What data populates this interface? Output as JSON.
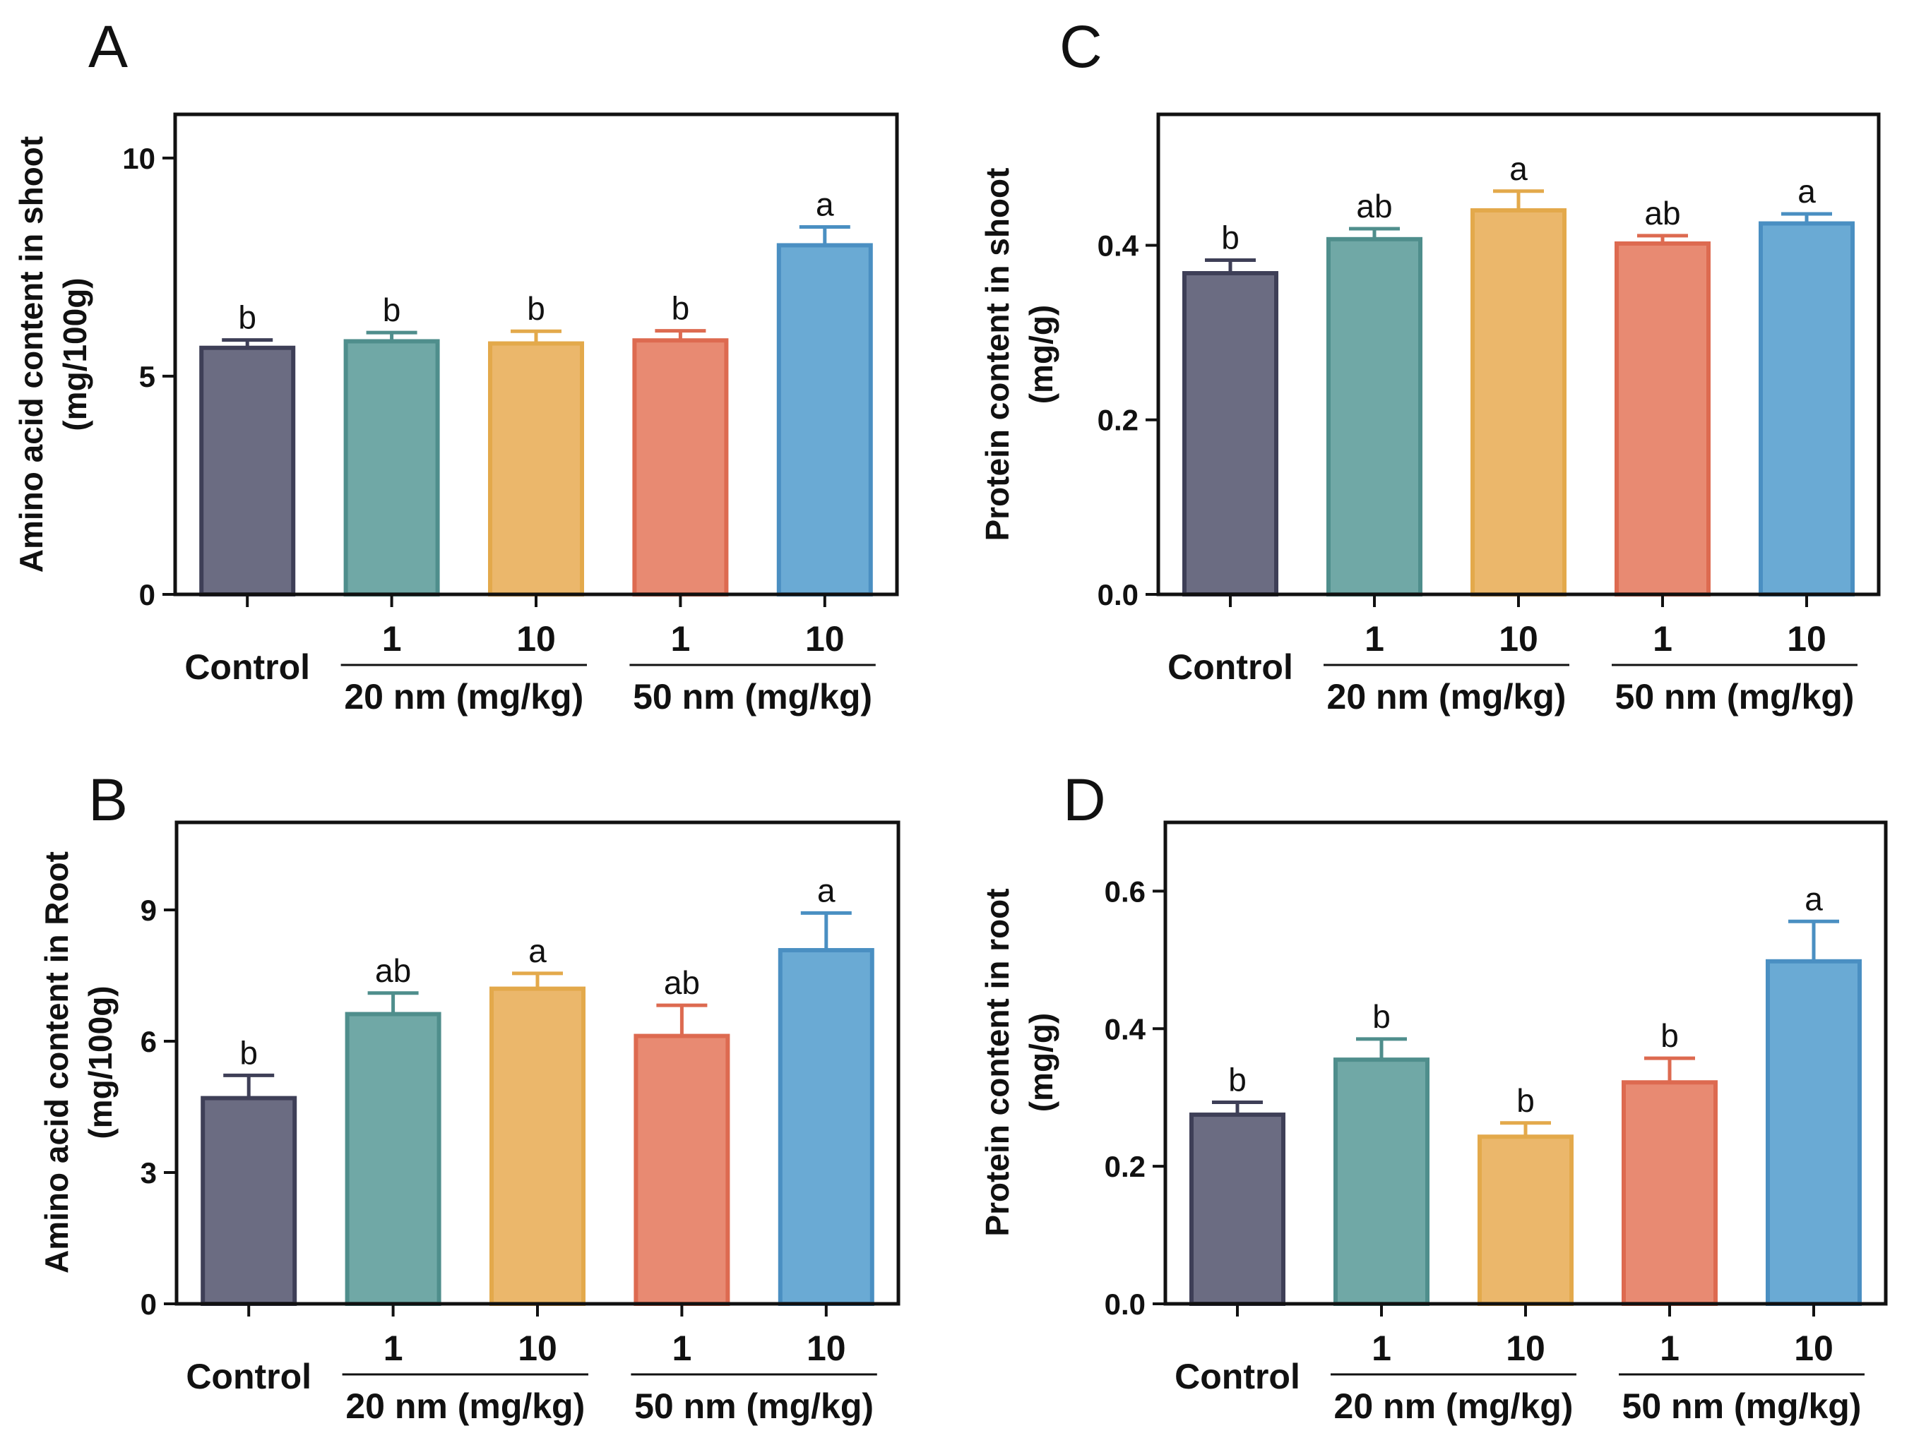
{
  "chart_data": [
    {
      "id": "A",
      "panel_label": "A",
      "type": "bar",
      "ylabel_line1": "Amino acid content in shoot",
      "ylabel_line2": "(mg/100g)",
      "ylim": [
        0,
        11
      ],
      "yticks": [
        0,
        5,
        10
      ],
      "ytick_labels": [
        "0",
        "5",
        "10"
      ],
      "categories": [
        "Control",
        "1",
        "10",
        "1",
        "10"
      ],
      "values": [
        5.65,
        5.8,
        5.75,
        5.82,
        8.0
      ],
      "errors": [
        0.18,
        0.2,
        0.28,
        0.22,
        0.42
      ],
      "significance": [
        "b",
        "b",
        "b",
        "b",
        "a"
      ],
      "group_labels": [
        "20 nm (mg/kg)",
        "50 nm (mg/kg)"
      ]
    },
    {
      "id": "B",
      "panel_label": "B",
      "type": "bar",
      "ylabel_line1": "Amino acid content in Root",
      "ylabel_line2": "(mg/100g)",
      "ylim": [
        0,
        11
      ],
      "yticks": [
        0,
        3,
        6,
        9
      ],
      "ytick_labels": [
        "0",
        "3",
        "6",
        "9"
      ],
      "categories": [
        "Control",
        "1",
        "10",
        "1",
        "10"
      ],
      "values": [
        4.7,
        6.62,
        7.2,
        6.12,
        8.08
      ],
      "errors": [
        0.52,
        0.48,
        0.35,
        0.7,
        0.85
      ],
      "significance": [
        "b",
        "ab",
        "a",
        "ab",
        "a"
      ],
      "group_labels": [
        "20 nm (mg/kg)",
        "50 nm (mg/kg)"
      ]
    },
    {
      "id": "C",
      "panel_label": "C",
      "type": "bar",
      "ylabel_line1": "Protein content in shoot",
      "ylabel_line2": "(mg/g)",
      "ylim": [
        0,
        0.55
      ],
      "yticks": [
        0,
        0.2,
        0.4
      ],
      "ytick_labels": [
        "0.0",
        "0.2",
        "0.4"
      ],
      "categories": [
        "Control",
        "1",
        "10",
        "1",
        "10"
      ],
      "values": [
        0.368,
        0.407,
        0.44,
        0.402,
        0.425
      ],
      "errors": [
        0.015,
        0.012,
        0.022,
        0.009,
        0.011
      ],
      "significance": [
        "b",
        "ab",
        "a",
        "ab",
        "a"
      ],
      "group_labels": [
        "20 nm (mg/kg)",
        "50 nm (mg/kg)"
      ]
    },
    {
      "id": "D",
      "panel_label": "D",
      "type": "bar",
      "ylabel_line1": "Protein content in root",
      "ylabel_line2": "(mg/g)",
      "ylim": [
        0,
        0.7
      ],
      "yticks": [
        0,
        0.2,
        0.4,
        0.6
      ],
      "ytick_labels": [
        "0.0",
        "0.2",
        "0.4",
        "0.6"
      ],
      "categories": [
        "Control",
        "1",
        "10",
        "1",
        "10"
      ],
      "values": [
        0.275,
        0.355,
        0.243,
        0.322,
        0.498
      ],
      "errors": [
        0.018,
        0.03,
        0.02,
        0.035,
        0.058
      ],
      "significance": [
        "b",
        "b",
        "b",
        "b",
        "a"
      ],
      "group_labels": [
        "20 nm (mg/kg)",
        "50 nm (mg/kg)"
      ]
    }
  ],
  "colors": {
    "fills": [
      "#6b6c82",
      "#70a8a6",
      "#ebb76b",
      "#e88a72",
      "#6aaad4"
    ],
    "strokes": [
      "#3e3f57",
      "#4f8e8c",
      "#e3a94b",
      "#dd6a50",
      "#4a8fc2"
    ]
  }
}
